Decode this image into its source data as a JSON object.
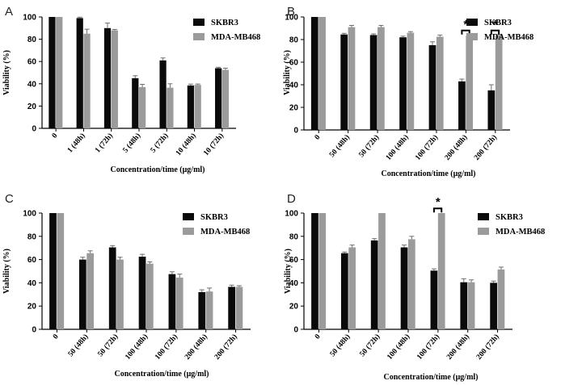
{
  "colors": {
    "series1": "#0a0a0a",
    "series2": "#9b9b9b",
    "axis": "#000000",
    "error": "#6e6e6e"
  },
  "chart_data": [
    {
      "type": "bar",
      "panel": "A",
      "categories": [
        "0",
        "1 (48h)",
        "1 (72h)",
        "5 (48h)",
        "5 (72h)",
        "10 (48h)",
        "10 (72h)"
      ],
      "series": [
        {
          "name": "SKBR3",
          "values": [
            100,
            99,
            90,
            45,
            61,
            38.5,
            54
          ],
          "errors": [
            0,
            0.8,
            4.5,
            2.2,
            2.2,
            1.2,
            0.8
          ]
        },
        {
          "name": "MDA-MB468",
          "values": [
            100,
            85,
            88,
            37,
            36.5,
            39,
            52.5
          ],
          "errors": [
            0,
            4,
            0.8,
            2.5,
            3.5,
            0.8,
            1.5
          ]
        }
      ],
      "xlabel": "Concentration/time (μg/ml)",
      "ylabel": "Viability (%)",
      "ylim": [
        0,
        100
      ],
      "yticks": [
        0,
        20,
        40,
        60,
        80,
        100
      ],
      "legend": "top-right",
      "significance": []
    },
    {
      "type": "bar",
      "panel": "B",
      "categories": [
        "0",
        "50 (48h)",
        "50 (72h)",
        "100 (48h)",
        "100 (72h)",
        "200 (48h)",
        "200 (72h)"
      ],
      "series": [
        {
          "name": "SKBR3",
          "values": [
            100,
            84.5,
            84,
            82,
            75,
            43,
            35
          ],
          "errors": [
            0,
            1,
            1,
            1,
            3,
            2,
            5
          ]
        },
        {
          "name": "MDA-MB468",
          "values": [
            100,
            91,
            91,
            86,
            82.5,
            83.5,
            83.5
          ],
          "errors": [
            0,
            1.5,
            1.5,
            1,
            1.5,
            1,
            1
          ]
        }
      ],
      "xlabel": "Concentration/time (μg/ml)",
      "ylabel": "Viability (%)",
      "ylim": [
        0,
        100
      ],
      "yticks": [
        0,
        20,
        40,
        60,
        80,
        100
      ],
      "legend": "top-right",
      "significance": [
        {
          "category_index": 5,
          "label": "*",
          "at": 88
        },
        {
          "category_index": 6,
          "label": "*",
          "at": 88
        }
      ]
    },
    {
      "type": "bar",
      "panel": "C",
      "categories": [
        "0",
        "50 (48h)",
        "50 (72h)",
        "100 (48h)",
        "100 (72h)",
        "200 (48h)",
        "200 (72h)"
      ],
      "series": [
        {
          "name": "SKBR3",
          "values": [
            100,
            60,
            70.5,
            62.5,
            47.5,
            32,
            36.5
          ],
          "errors": [
            0,
            2,
            1.5,
            2,
            2,
            2,
            1.5
          ]
        },
        {
          "name": "MDA-MB468",
          "values": [
            100,
            65.5,
            60,
            56.5,
            44.5,
            32.5,
            36.5
          ],
          "errors": [
            0,
            2,
            2,
            1.5,
            3,
            3,
            1
          ]
        }
      ],
      "xlabel": "Concentration/time (μg/ml)",
      "ylabel": "Viability (%)",
      "ylim": [
        0,
        100
      ],
      "yticks": [
        0,
        20,
        40,
        60,
        80,
        100
      ],
      "legend": "top-right",
      "significance": []
    },
    {
      "type": "bar",
      "panel": "D",
      "categories": [
        "0",
        "50 (48h)",
        "50 (72h)",
        "100 (48h)",
        "100 (72h)",
        "200 (48h)",
        "200 (72h)"
      ],
      "series": [
        {
          "name": "SKBR3",
          "values": [
            100,
            65.5,
            76.5,
            70.5,
            50.5,
            40.5,
            40
          ],
          "errors": [
            0,
            1,
            1.5,
            2,
            1.5,
            3,
            1.5
          ]
        },
        {
          "name": "MDA-MB468",
          "values": [
            100,
            70.5,
            100,
            77.5,
            100,
            40.5,
            51.5
          ],
          "errors": [
            0,
            2,
            0,
            2.5,
            0,
            2,
            2
          ]
        }
      ],
      "xlabel": "Concentration/time (μg/ml)",
      "ylabel": "Viability (%)",
      "ylim": [
        0,
        100
      ],
      "yticks": [
        0,
        20,
        40,
        60,
        80,
        100
      ],
      "legend": "top-right",
      "significance": [
        {
          "category_index": 4,
          "label": "*",
          "at": 104
        }
      ]
    }
  ]
}
